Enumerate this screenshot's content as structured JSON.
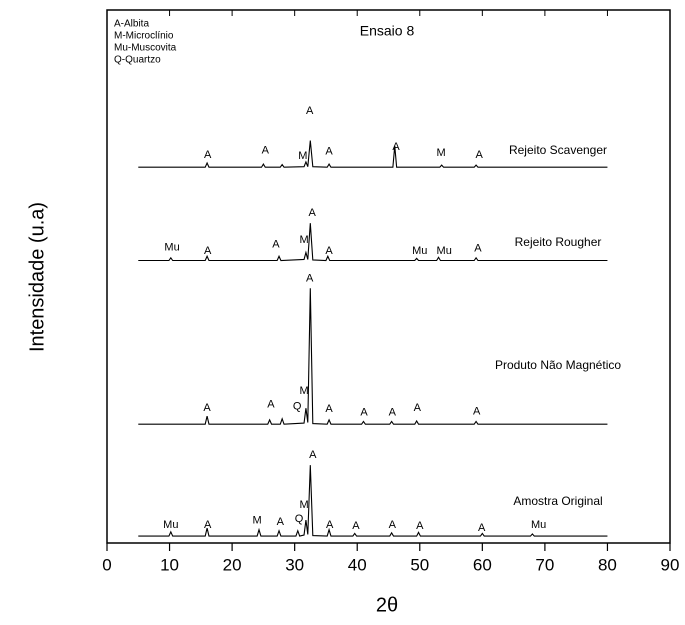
{
  "chart_data": {
    "type": "line",
    "title": "Ensaio 8",
    "legend_notes": [
      "A-Albita",
      "M-Microclínio",
      "Mu-Muscovita",
      "Q-Quartzo"
    ],
    "x_label": "2θ",
    "y_label": "Intensidade (u.a)",
    "xlim": [
      0,
      90
    ],
    "xticks": [
      0,
      10,
      20,
      30,
      40,
      50,
      60,
      70,
      80,
      90
    ],
    "ylim": [
      0,
      100
    ],
    "color": "#000000",
    "series": [
      {
        "name": "Amostra Original",
        "x": [
          5,
          9.9,
          10.2,
          10.5,
          15.7,
          16,
          16.3,
          24,
          24.3,
          24.6,
          27.2,
          27.5,
          27.8,
          30.2,
          30.5,
          30.8,
          31.5,
          31.8,
          32.1,
          32.5,
          32.9,
          35.2,
          35.5,
          35.8,
          39.3,
          39.6,
          39.9,
          45.2,
          45.5,
          45.8,
          49.5,
          49.8,
          50.1,
          59.7,
          60,
          60.3,
          67.7,
          68,
          68.3,
          80
        ],
        "values": [
          1.3,
          1.3,
          2.1,
          1.3,
          1.3,
          2.8,
          1.3,
          1.3,
          2.5,
          1.3,
          1.3,
          2.3,
          1.3,
          1.3,
          2.3,
          1.3,
          1.5,
          4.3,
          1.6,
          14.6,
          1.4,
          1.3,
          2.5,
          1.3,
          1.3,
          1.8,
          1.3,
          1.3,
          1.9,
          1.3,
          1.3,
          2,
          1.3,
          1.3,
          1.8,
          1.3,
          1.3,
          1.7,
          1.3,
          1.3
        ]
      },
      {
        "name": "Produto Não Magnético",
        "x": [
          5,
          15.7,
          16,
          16.3,
          25.7,
          26,
          26.3,
          27.7,
          28,
          28.3,
          31.5,
          31.8,
          32.1,
          32.5,
          32.9,
          35.2,
          35.5,
          35.8,
          40.7,
          41,
          41.3,
          45.2,
          45.5,
          45.8,
          49.2,
          49.5,
          49.8,
          58.7,
          59,
          59.3,
          80
        ],
        "values": [
          22.3,
          22.3,
          23.8,
          22.3,
          22.3,
          23.1,
          22.3,
          22.3,
          23.3,
          22.3,
          22.5,
          25.3,
          22.6,
          47.8,
          22.4,
          22.3,
          23.1,
          22.3,
          22.3,
          22.8,
          22.3,
          22.3,
          22.8,
          22.3,
          22.3,
          22.9,
          22.3,
          22.3,
          22.8,
          22.3,
          22.3
        ]
      },
      {
        "name": "Rejeito Rougher",
        "x": [
          5,
          9.9,
          10.2,
          10.5,
          15.7,
          16,
          16.3,
          27.2,
          27.5,
          27.8,
          31.5,
          31.8,
          32.1,
          32.5,
          32.9,
          35,
          35.3,
          35.6,
          49.2,
          49.5,
          49.8,
          52.7,
          53,
          53.3,
          58.7,
          59,
          59.3,
          80
        ],
        "values": [
          53,
          53,
          53.5,
          53,
          53,
          53.8,
          53,
          53,
          53.8,
          53,
          53.2,
          54.5,
          53.2,
          60,
          53.1,
          53,
          53.8,
          53,
          53,
          53.4,
          53,
          53,
          53.6,
          53,
          53,
          53.5,
          53,
          53
        ]
      },
      {
        "name": "Rejeito Scavenger",
        "x": [
          5,
          15.7,
          16,
          16.3,
          24.7,
          25,
          25.3,
          27.7,
          28,
          28.3,
          31.5,
          31.8,
          32.1,
          32.5,
          32.9,
          35.2,
          35.5,
          35.8,
          45.7,
          46,
          46.3,
          53.2,
          53.5,
          53.8,
          58.7,
          59,
          59.3,
          80
        ],
        "values": [
          70.5,
          70.5,
          71.3,
          70.5,
          70.5,
          71.1,
          70.5,
          70.5,
          71,
          70.5,
          70.6,
          71.5,
          70.6,
          75.5,
          70.6,
          70.5,
          71.1,
          70.5,
          70.5,
          74.5,
          70.5,
          70.5,
          70.9,
          70.5,
          70.5,
          70.9,
          70.5,
          70.5
        ]
      }
    ],
    "annotations": [
      {
        "text": "Mu",
        "x": 10.2,
        "y": 3.4
      },
      {
        "text": "A",
        "x": 16.1,
        "y": 3.4
      },
      {
        "text": "M",
        "x": 24,
        "y": 4.2
      },
      {
        "text": "A",
        "x": 27.7,
        "y": 3.9
      },
      {
        "text": "Q",
        "x": 30.7,
        "y": 4.5
      },
      {
        "text": "M",
        "x": 31.5,
        "y": 7.1
      },
      {
        "text": "A",
        "x": 32.9,
        "y": 16.5
      },
      {
        "text": "A",
        "x": 35.6,
        "y": 3.4
      },
      {
        "text": "A",
        "x": 39.8,
        "y": 3.2
      },
      {
        "text": "A",
        "x": 45.6,
        "y": 3.4
      },
      {
        "text": "A",
        "x": 50,
        "y": 3.2
      },
      {
        "text": "A",
        "x": 59.9,
        "y": 2.8
      },
      {
        "text": "Mu",
        "x": 69,
        "y": 3.4
      },
      {
        "text": "A",
        "x": 16,
        "y": 25.3
      },
      {
        "text": "A",
        "x": 26.2,
        "y": 26
      },
      {
        "text": "Q",
        "x": 30.4,
        "y": 25.6
      },
      {
        "text": "M",
        "x": 31.5,
        "y": 28.5
      },
      {
        "text": "A",
        "x": 32.4,
        "y": 49.6
      },
      {
        "text": "A",
        "x": 35.5,
        "y": 25.1
      },
      {
        "text": "A",
        "x": 41.1,
        "y": 24.5
      },
      {
        "text": "A",
        "x": 45.6,
        "y": 24.5
      },
      {
        "text": "A",
        "x": 49.6,
        "y": 25.3
      },
      {
        "text": "A",
        "x": 59.1,
        "y": 24.7
      },
      {
        "text": "Mu",
        "x": 10.4,
        "y": 55.4
      },
      {
        "text": "A",
        "x": 16.1,
        "y": 54.8
      },
      {
        "text": "A",
        "x": 27,
        "y": 56
      },
      {
        "text": "M",
        "x": 31.5,
        "y": 56.8
      },
      {
        "text": "A",
        "x": 32.8,
        "y": 61.9
      },
      {
        "text": "A",
        "x": 35.5,
        "y": 54.8
      },
      {
        "text": "Mu",
        "x": 50,
        "y": 54.8
      },
      {
        "text": "Mu",
        "x": 53.9,
        "y": 54.8
      },
      {
        "text": "A",
        "x": 59.3,
        "y": 55.2
      },
      {
        "text": "A",
        "x": 16.1,
        "y": 72.8
      },
      {
        "text": "A",
        "x": 25.3,
        "y": 73.6
      },
      {
        "text": "M",
        "x": 31.3,
        "y": 72.6
      },
      {
        "text": "A",
        "x": 32.4,
        "y": 81
      },
      {
        "text": "A",
        "x": 35.5,
        "y": 73.4
      },
      {
        "text": "A",
        "x": 46.2,
        "y": 74.3
      },
      {
        "text": "M",
        "x": 53.4,
        "y": 73.2
      },
      {
        "text": "A",
        "x": 59.5,
        "y": 72.8
      }
    ]
  }
}
